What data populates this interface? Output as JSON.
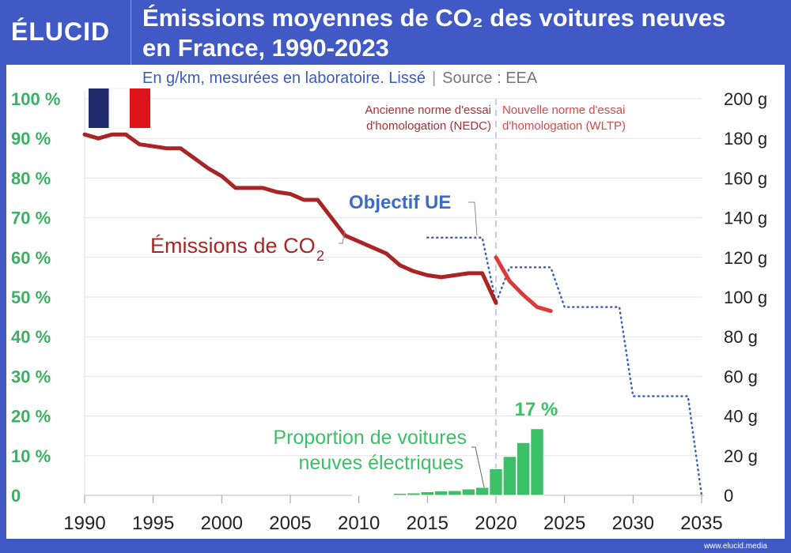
{
  "header": {
    "logo": "ÉLUCID",
    "title_line1": "Émissions moyennes de CO₂ des voitures neuves",
    "title_line2": "en France, 1990-2023"
  },
  "subtitle": {
    "text": "En g/km, mesurées en laboratoire. Lissé",
    "separator": "|",
    "source": "Source : EEA"
  },
  "footer": {
    "url": "www.elucid.media"
  },
  "colors": {
    "frame": "#4059c4",
    "co2_nedc": "#a82525",
    "co2_wltp": "#dd3a3a",
    "target": "#3a62b8",
    "ev_bars": "#3cc067",
    "left_axis": "#3cb062"
  },
  "chart_data": {
    "type": "bar+line",
    "title": "Émissions moyennes de CO₂ des voitures neuves en France, 1990-2023",
    "xlim": [
      1990,
      2035
    ],
    "x_ticks": [
      "1990",
      "1995",
      "2000",
      "2005",
      "2010",
      "2015",
      "2020",
      "2025",
      "2030",
      "2035"
    ],
    "y_left": {
      "range": [
        0,
        100
      ],
      "ticks": [
        "0",
        "10 %",
        "20 %",
        "30 %",
        "40 %",
        "50 %",
        "60 %",
        "70 %",
        "80 %",
        "90 %",
        "100 %"
      ]
    },
    "y_right": {
      "range": [
        0,
        200
      ],
      "ticks": [
        "0",
        "20 g",
        "40 g",
        "60 g",
        "80 g",
        "100 g",
        "120 g",
        "140 g",
        "160 g",
        "180 g",
        "200 g"
      ]
    },
    "grid": true,
    "annotations": {
      "nedc": [
        "Ancienne norme d'essai",
        "d'homologation (NEDC)"
      ],
      "wltp": [
        "Nouvelle norme d'essai",
        "d'homologation (WLTP)"
      ],
      "ev_last": "17 %",
      "norm_change_year": 2020
    },
    "series": [
      {
        "name": "Émissions de CO₂",
        "axis": "right",
        "segment": "NEDC",
        "x": [
          1990,
          1991,
          1992,
          1993,
          1994,
          1995,
          1996,
          1997,
          1998,
          1999,
          2000,
          2001,
          2002,
          2003,
          2004,
          2005,
          2006,
          2007,
          2008,
          2009,
          2010,
          2011,
          2012,
          2013,
          2014,
          2015,
          2016,
          2017,
          2018,
          2019,
          2020
        ],
        "y": [
          182,
          180,
          182,
          182,
          177,
          176,
          175,
          175,
          170,
          165,
          161,
          155,
          155,
          155,
          153,
          152,
          149,
          149,
          140,
          131,
          128,
          125,
          122,
          116,
          113,
          111,
          110,
          111,
          112,
          112,
          97
        ]
      },
      {
        "name": "Émissions de CO₂",
        "axis": "right",
        "segment": "WLTP",
        "x": [
          2020,
          2021,
          2022,
          2023,
          2024
        ],
        "y": [
          120,
          108,
          101,
          95,
          93
        ]
      },
      {
        "name": "Objectif UE",
        "axis": "right",
        "style": "dotted",
        "x": [
          2015,
          2019,
          2020,
          2021,
          2024,
          2025,
          2029,
          2030,
          2034,
          2035
        ],
        "y": [
          130,
          130,
          97,
          115,
          115,
          95,
          95,
          50,
          50,
          0
        ]
      },
      {
        "name": "Proportion de voitures neuves électriques",
        "axis": "left",
        "type": "bar",
        "x": [
          2010,
          2011,
          2012,
          2013,
          2014,
          2015,
          2016,
          2017,
          2018,
          2019,
          2020,
          2021,
          2022,
          2023
        ],
        "y": [
          0.05,
          0.1,
          0.2,
          0.5,
          0.6,
          0.9,
          1.1,
          1.2,
          1.6,
          2.0,
          6.7,
          9.8,
          13.3,
          16.8
        ]
      }
    ],
    "labels": {
      "co2": "Émissions de CO",
      "co2_sub": "2",
      "target": "Objectif UE",
      "ev_line1": "Proportion de voitures",
      "ev_line2": "neuves électriques"
    }
  }
}
